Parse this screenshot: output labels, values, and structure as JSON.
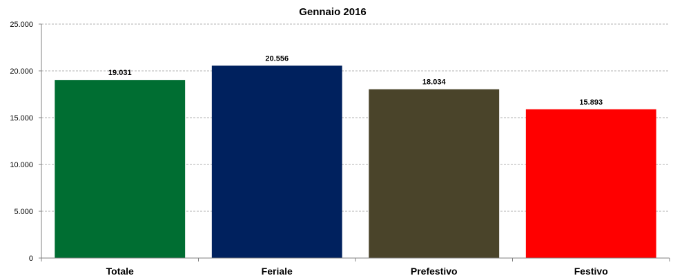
{
  "chart_data": {
    "type": "bar",
    "title": "Gennaio 2016",
    "categories": [
      "Totale",
      "Feriale",
      "Prefestivo",
      "Festivo"
    ],
    "values": [
      19031,
      20556,
      18034,
      15893
    ],
    "value_labels": [
      "19.031",
      "20.556",
      "18.034",
      "15.893"
    ],
    "colors": [
      "#006E32",
      "#00215E",
      "#4A442A",
      "#FF0000"
    ],
    "ylim": [
      0,
      25000
    ],
    "yticks": [
      0,
      5000,
      10000,
      15000,
      20000,
      25000
    ],
    "ytick_labels": [
      "0",
      "5.000",
      "10.000",
      "15.000",
      "20.000",
      "25.000"
    ],
    "xlabel": "",
    "ylabel": "",
    "grid": true,
    "legend": "none"
  }
}
